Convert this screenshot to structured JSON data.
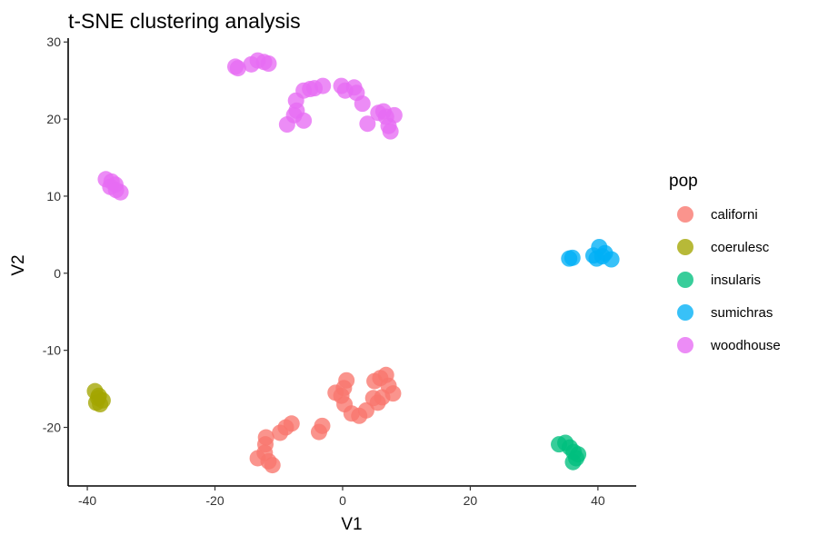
{
  "chart_data": {
    "type": "scatter",
    "title": "t-SNE clustering analysis",
    "xlabel": "V1",
    "ylabel": "V2",
    "xlim": [
      -43,
      46
    ],
    "ylim": [
      -27.6,
      30.5
    ],
    "xticks": [
      -40,
      -20,
      0,
      20,
      40
    ],
    "yticks": [
      -20,
      -10,
      0,
      10,
      20,
      30
    ],
    "grid": false,
    "legend_title": "pop",
    "legend_position": "right",
    "series": [
      {
        "name": "californi",
        "color": "#F8766D",
        "points": [
          [
            -13.3,
            -24.0
          ],
          [
            -12.2,
            -23.3
          ],
          [
            -11.6,
            -24.4
          ],
          [
            -11.0,
            -24.9
          ],
          [
            -12.0,
            -21.3
          ],
          [
            -12.1,
            -22.2
          ],
          [
            -9.8,
            -20.7
          ],
          [
            -8.9,
            -20.0
          ],
          [
            -8.0,
            -19.5
          ],
          [
            -3.7,
            -20.6
          ],
          [
            -3.2,
            -19.8
          ],
          [
            -1.1,
            -15.5
          ],
          [
            -0.2,
            -15.9
          ],
          [
            0.2,
            -14.9
          ],
          [
            0.6,
            -13.9
          ],
          [
            0.3,
            -17.0
          ],
          [
            1.4,
            -18.2
          ],
          [
            2.6,
            -18.5
          ],
          [
            3.7,
            -17.8
          ],
          [
            4.8,
            -16.2
          ],
          [
            5.5,
            -16.8
          ],
          [
            6.2,
            -16.1
          ],
          [
            5.0,
            -14.0
          ],
          [
            5.9,
            -13.6
          ],
          [
            6.8,
            -13.2
          ],
          [
            7.2,
            -14.6
          ],
          [
            7.9,
            -15.6
          ]
        ]
      },
      {
        "name": "coerulesc",
        "color": "#A3A500",
        "points": [
          [
            -38.8,
            -15.3
          ],
          [
            -38.3,
            -16.2
          ],
          [
            -38.0,
            -17.0
          ],
          [
            -37.6,
            -16.5
          ],
          [
            -38.6,
            -16.8
          ],
          [
            -38.2,
            -15.9
          ]
        ]
      },
      {
        "name": "insularis",
        "color": "#00BF7D",
        "points": [
          [
            33.9,
            -22.2
          ],
          [
            34.9,
            -22.0
          ],
          [
            35.6,
            -22.6
          ],
          [
            36.2,
            -23.2
          ],
          [
            36.6,
            -24.0
          ],
          [
            36.1,
            -24.5
          ],
          [
            36.9,
            -23.5
          ]
        ]
      },
      {
        "name": "sumichras",
        "color": "#00B0F6",
        "points": [
          [
            35.5,
            1.9
          ],
          [
            36.0,
            2.0
          ],
          [
            39.3,
            2.3
          ],
          [
            39.8,
            1.9
          ],
          [
            40.2,
            3.4
          ],
          [
            40.7,
            2.2
          ],
          [
            41.1,
            2.6
          ],
          [
            42.1,
            1.8
          ]
        ]
      },
      {
        "name": "woodhouse",
        "color": "#E76BF3",
        "points": [
          [
            -37.1,
            12.2
          ],
          [
            -36.2,
            11.9
          ],
          [
            -35.6,
            11.5
          ],
          [
            -36.4,
            11.2
          ],
          [
            -34.8,
            10.5
          ],
          [
            -35.5,
            10.8
          ],
          [
            -16.8,
            26.8
          ],
          [
            -16.4,
            26.6
          ],
          [
            -14.3,
            27.1
          ],
          [
            -13.3,
            27.6
          ],
          [
            -12.3,
            27.4
          ],
          [
            -11.6,
            27.2
          ],
          [
            -8.7,
            19.3
          ],
          [
            -7.6,
            20.5
          ],
          [
            -7.2,
            21.1
          ],
          [
            -7.3,
            22.4
          ],
          [
            -6.1,
            23.7
          ],
          [
            -6.1,
            19.8
          ],
          [
            -5.1,
            23.9
          ],
          [
            -4.4,
            24.0
          ],
          [
            -3.1,
            24.3
          ],
          [
            -0.2,
            24.3
          ],
          [
            0.4,
            23.7
          ],
          [
            1.8,
            24.1
          ],
          [
            2.2,
            23.4
          ],
          [
            3.1,
            22.0
          ],
          [
            3.9,
            19.4
          ],
          [
            5.6,
            20.8
          ],
          [
            6.4,
            21.0
          ],
          [
            6.8,
            20.3
          ],
          [
            7.2,
            19.1
          ],
          [
            7.5,
            18.4
          ],
          [
            8.1,
            20.5
          ]
        ]
      }
    ]
  }
}
